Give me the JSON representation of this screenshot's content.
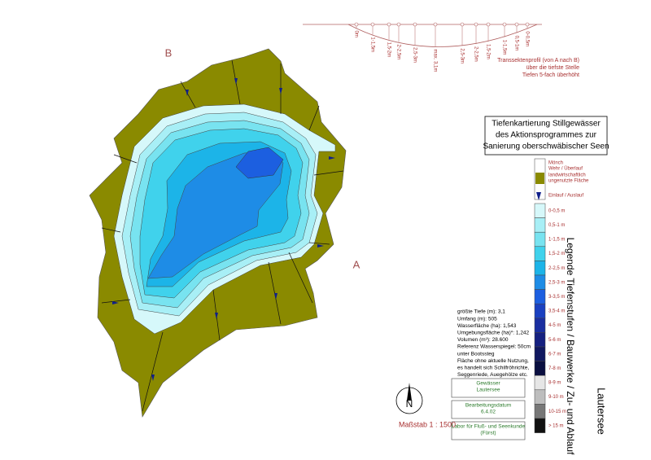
{
  "map": {
    "marker_b": "B",
    "marker_a": "A",
    "north": "N",
    "scale": "Maßstab 1 : 1500"
  },
  "profile": {
    "depth_labels": [
      "0m",
      "1-1,5m",
      "1,5-2m",
      "2-2,5m",
      "2,5-3m",
      "max. 3,1m",
      "2,5-3m",
      "2-2,5m",
      "1,5-2m",
      "1-1,5m",
      "0,5-1m",
      "0-0,5m"
    ],
    "caption": [
      "Transsektenprofil (von A nach B)",
      "über die tiefste Stelle",
      "Tiefen 5-fach überhöht"
    ]
  },
  "title_box": [
    "Tiefenkartierung Stillgewässer",
    "des Aktionsprogrammes zur",
    "Sanierung oberschwäbischer Seen"
  ],
  "legend": {
    "heading": "Legende Tiefenstufen / Bauwerke / Zu- und Ablauf",
    "lake_name": "Lautersee",
    "symbols": [
      "Mönch",
      "Wehr / Überlauf",
      "landwirtschaftlich",
      "ungenutzte Fläche",
      "Einlauf / Auslauf"
    ],
    "depth_classes": [
      {
        "label": "0-0,5 m",
        "color": "#d6f8fa"
      },
      {
        "label": "0,5-1 m",
        "color": "#a8eff6"
      },
      {
        "label": "1-1,5 m",
        "color": "#78e3f0"
      },
      {
        "label": "1,5-2 m",
        "color": "#40d2ec"
      },
      {
        "label": "2-2,5 m",
        "color": "#1cb4e8"
      },
      {
        "label": "2,5-3 m",
        "color": "#1e8ce6"
      },
      {
        "label": "3-3,5 m",
        "color": "#1c5fe0"
      },
      {
        "label": "3,5-4 m",
        "color": "#1a40c0"
      },
      {
        "label": "4-5 m",
        "color": "#1a2ea0"
      },
      {
        "label": "5-6 m",
        "color": "#152080"
      },
      {
        "label": "6-7 m",
        "color": "#101860"
      },
      {
        "label": "7-8 m",
        "color": "#0a0f40"
      },
      {
        "label": "8-9 m",
        "color": "#e6e6e6"
      },
      {
        "label": "9-10 m",
        "color": "#bdbdbd"
      },
      {
        "label": "10-15 m",
        "color": "#777777"
      },
      {
        "label": "> 15 m",
        "color": "#111111"
      }
    ]
  },
  "statistics": [
    "größte Tiefe (m): 3,1",
    "Umfang (m): 505",
    "Wasserfläche (ha): 1,543",
    "Umgebungsfläche (ha)*: 1,242",
    "Volumen (m³): 28.600",
    "Referenz Wasserspiegel: 50cm",
    "unter Bootssteg",
    "Fläche ohne aktuelle Nutzung,",
    "es handelt sich Schilfröhrichte,",
    "Seggenriede, Auegehölze etc."
  ],
  "info_boxes": [
    [
      "Gewässer",
      "Lautersee"
    ],
    [
      "Bearbeitungsdatum",
      "6.4.02"
    ],
    [
      "Labor für Fluß- und Seenkunde",
      "(Fürst)"
    ]
  ]
}
